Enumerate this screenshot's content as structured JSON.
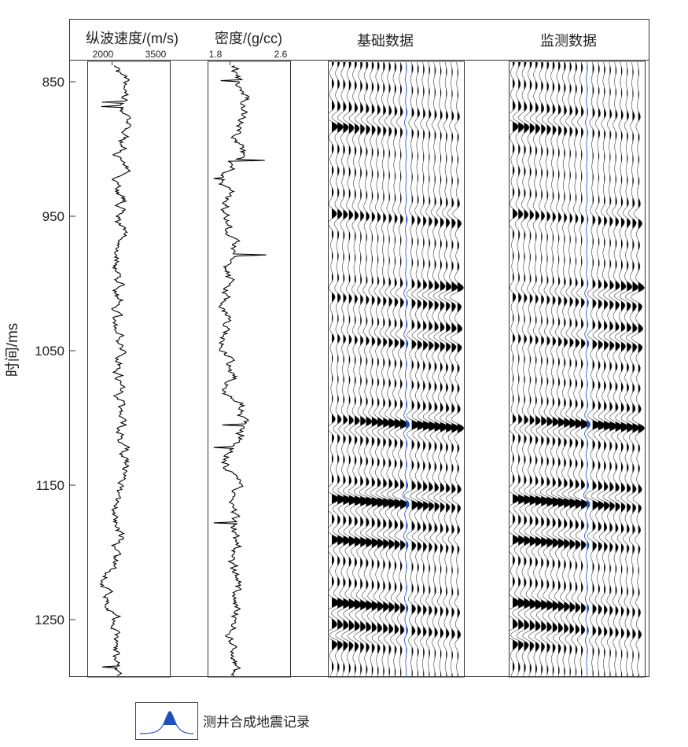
{
  "chart_data": {
    "type": "line",
    "title": "",
    "ylabel": "时间/ms",
    "ylim": [
      835,
      1295
    ],
    "yticks": [
      "850",
      "950",
      "1050",
      "1150",
      "1250"
    ],
    "ytick_values": [
      850,
      950,
      1050,
      1150,
      1250
    ],
    "tracks": [
      {
        "title": "纵波速度/(m/s)",
        "xmin_label": "2000",
        "xmax_label": "3500",
        "xlim": [
          2000,
          3500
        ],
        "type": "log",
        "baseline": 2450,
        "spread": 180,
        "seed": 7
      },
      {
        "title": "密度/(g/cc)",
        "xmin_label": "1.8",
        "xmax_label": "2.6",
        "xlim": [
          1.8,
          2.6
        ],
        "type": "log",
        "baseline": 2.08,
        "spread": 0.1,
        "seed": 19
      },
      {
        "title": "基础数据",
        "type": "seismic",
        "traces": 23,
        "well_trace_index": 13
      },
      {
        "title": "监测数据",
        "type": "seismic",
        "traces": 23,
        "well_trace_index": 13
      }
    ],
    "seismic_strong_events_ms": [
      880,
      950,
      1008,
      1040,
      1105,
      1160,
      1190,
      1240,
      1262
    ],
    "legend": {
      "label": "测井合成地震记录",
      "placement": "bottom-left"
    },
    "colors": {
      "wiggle_fill": "#000000",
      "synthetic": "#1f4fbf",
      "axis": "#333333"
    }
  }
}
